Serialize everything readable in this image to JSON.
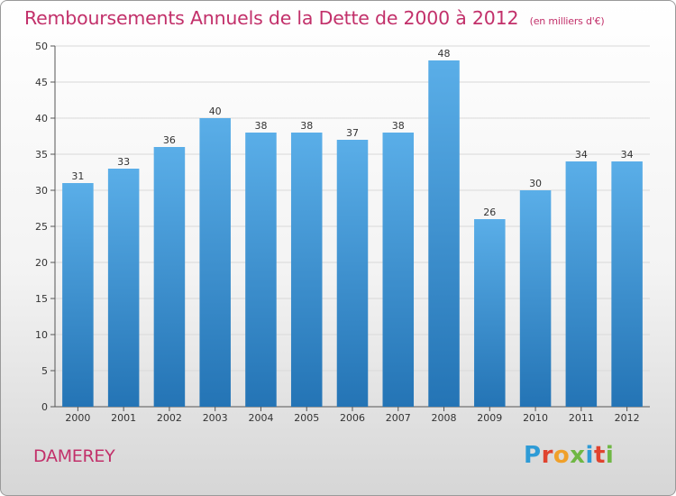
{
  "header": {
    "title": "Remboursements Annuels de la Dette de 2000 à 2012",
    "subtitle": "(en milliers d'€)"
  },
  "footer": {
    "city": "DAMEREY",
    "logo": [
      "P",
      "r",
      "o",
      "x",
      "i",
      "t",
      "i"
    ],
    "logo_colors": [
      "#2e9bd6",
      "#e0432f",
      "#f0a02a",
      "#6fb744",
      "#2e9bd6",
      "#e0432f",
      "#6fb744"
    ]
  },
  "colors": {
    "bar_top": "#5aaee8",
    "bar_bottom": "#2474b5",
    "title": "#c2306a",
    "grid": "#d9d9d9"
  },
  "chart_data": {
    "type": "bar",
    "categories": [
      "2000",
      "2001",
      "2002",
      "2003",
      "2004",
      "2005",
      "2006",
      "2007",
      "2008",
      "2009",
      "2010",
      "2011",
      "2012"
    ],
    "values": [
      31,
      33,
      36,
      40,
      38,
      38,
      37,
      38,
      48,
      26,
      30,
      34,
      34
    ],
    "data_labels": [
      "31",
      "33",
      "36",
      "40",
      "38",
      "38",
      "37",
      "38",
      "48",
      "26",
      "30",
      "34",
      "34"
    ],
    "y_ticks": [
      "0",
      "5",
      "10",
      "15",
      "20",
      "25",
      "30",
      "35",
      "40",
      "45",
      "50"
    ],
    "ylim": [
      0,
      50
    ],
    "grid": true
  }
}
